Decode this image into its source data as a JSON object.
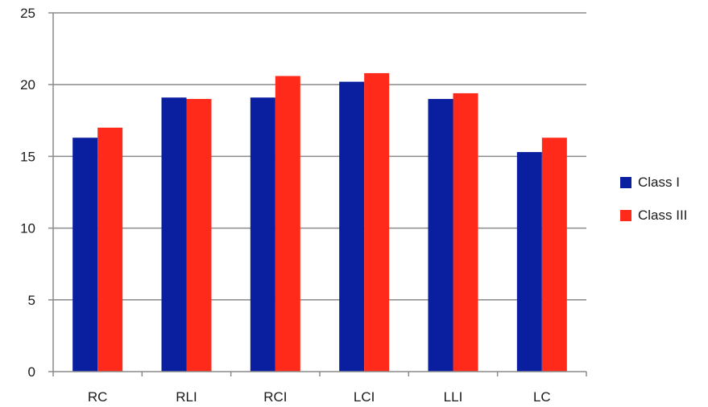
{
  "chart_data": {
    "type": "bar",
    "categories": [
      "RC",
      "RLI",
      "RCI",
      "LCI",
      "LLI",
      "LC"
    ],
    "series": [
      {
        "name": "Class I",
        "color": "#0a1fa0",
        "values": [
          16.3,
          19.1,
          19.1,
          20.2,
          19.0,
          15.3
        ]
      },
      {
        "name": "Class III",
        "color": "#ff2a1a",
        "values": [
          17.0,
          19.0,
          20.6,
          20.8,
          19.4,
          16.3
        ]
      }
    ],
    "ylim": [
      0,
      25
    ],
    "yticks": [
      0,
      5,
      10,
      15,
      20,
      25
    ],
    "grid": true,
    "legend_position": "right"
  }
}
